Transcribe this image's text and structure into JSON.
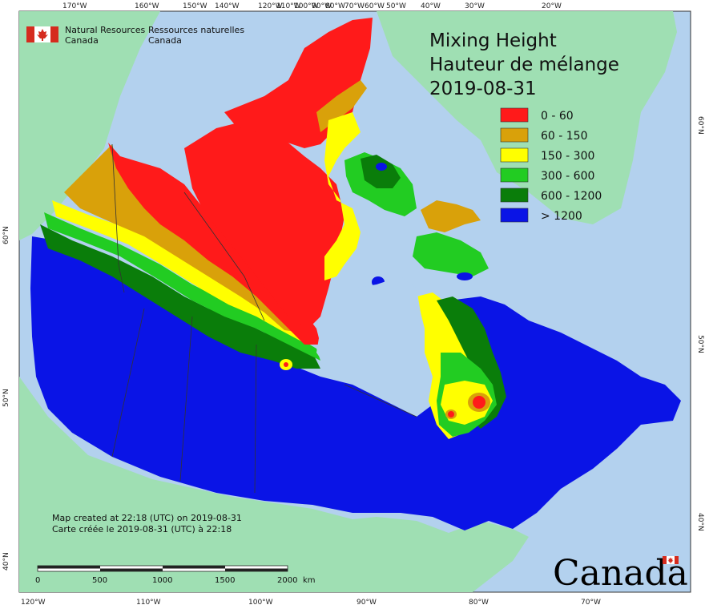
{
  "organization": {
    "name_en_line1": "Natural Resources",
    "name_en_line2": "Canada",
    "name_fr_line1": "Ressources naturelles",
    "name_fr_line2": "Canada"
  },
  "title": {
    "line1": "Mixing Height",
    "line2": "Hauteur de mélange",
    "date": "2019-08-31"
  },
  "legend": {
    "items": [
      {
        "label": "0 - 60",
        "color": "#ff1a1a"
      },
      {
        "label": "60 - 150",
        "color": "#d9a10a"
      },
      {
        "label": "150 - 300",
        "color": "#ffff00"
      },
      {
        "label": "300 - 600",
        "color": "#22cc22"
      },
      {
        "label": "600 - 1200",
        "color": "#0a7d0a"
      },
      {
        "label": "> 1200",
        "color": "#0a14e6"
      }
    ]
  },
  "credits": {
    "en": "Map created at 22:18 (UTC) on 2019-08-31",
    "fr": "Carte créée le 2019-08-31 (UTC) à 22:18"
  },
  "scalebar": {
    "labels": [
      "0",
      "500",
      "1000",
      "1500",
      "2000"
    ],
    "unit": "km"
  },
  "wordmark": "Canada",
  "graticule": {
    "top": [
      "170°W",
      "160°W",
      "150°W",
      "140°W",
      "120°W",
      "110°W",
      "100°W",
      "90°W",
      "80°W",
      "70°W",
      "60°W",
      "50°W",
      "40°W",
      "30°W",
      "20°W"
    ],
    "bottom": [
      "120°W",
      "110°W",
      "100°W",
      "90°W",
      "80°W",
      "70°W"
    ],
    "left": [
      "60°N",
      "50°N",
      "40°N"
    ],
    "right": [
      "60°N",
      "50°N",
      "40°N"
    ]
  },
  "colors": {
    "water": "#b3d1ee",
    "foreign_land": "#9fdfb3",
    "boundary": "#333333"
  }
}
